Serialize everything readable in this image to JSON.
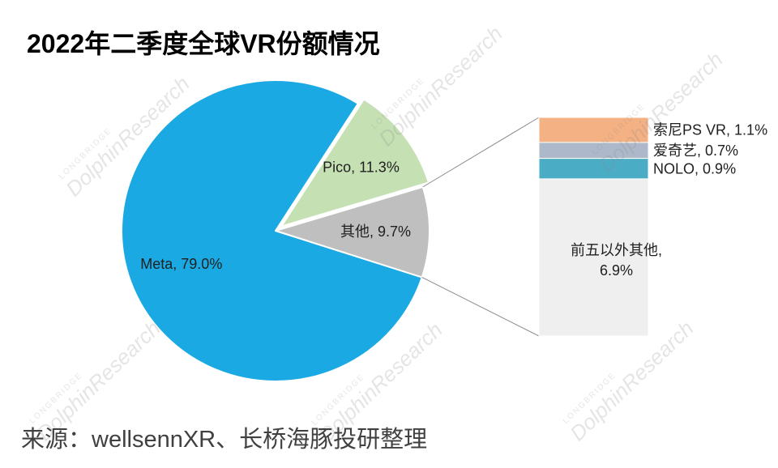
{
  "source": "来源：wellsennXR、长桥海豚投研整理",
  "watermark": {
    "brand": "LONGBRIDGE",
    "name": "DolphinResearch"
  },
  "chart_data": {
    "type": "pie",
    "title": "2022年二季度全球VR份额情况",
    "unit": "%",
    "pie": [
      {
        "name": "Meta",
        "value": 79.0,
        "color": "#1BA9E3"
      },
      {
        "name": "Pico",
        "value": 11.3,
        "color": "#C5E0B3",
        "exploded": true
      },
      {
        "name": "其他",
        "value": 9.7,
        "color": "#BFBFBF",
        "split_into_bar": true
      }
    ],
    "breakout_bar": {
      "type": "bar",
      "items": [
        {
          "name": "索尼PS VR",
          "value": 1.1,
          "color": "#F4B183"
        },
        {
          "name": "爱奇艺",
          "value": 0.7,
          "color": "#ADB9CA"
        },
        {
          "name": "NOLO",
          "value": 0.9,
          "color": "#4BACC6"
        },
        {
          "name": "前五以外其他",
          "value": 6.9,
          "color": "#EFEFEF"
        }
      ]
    }
  }
}
